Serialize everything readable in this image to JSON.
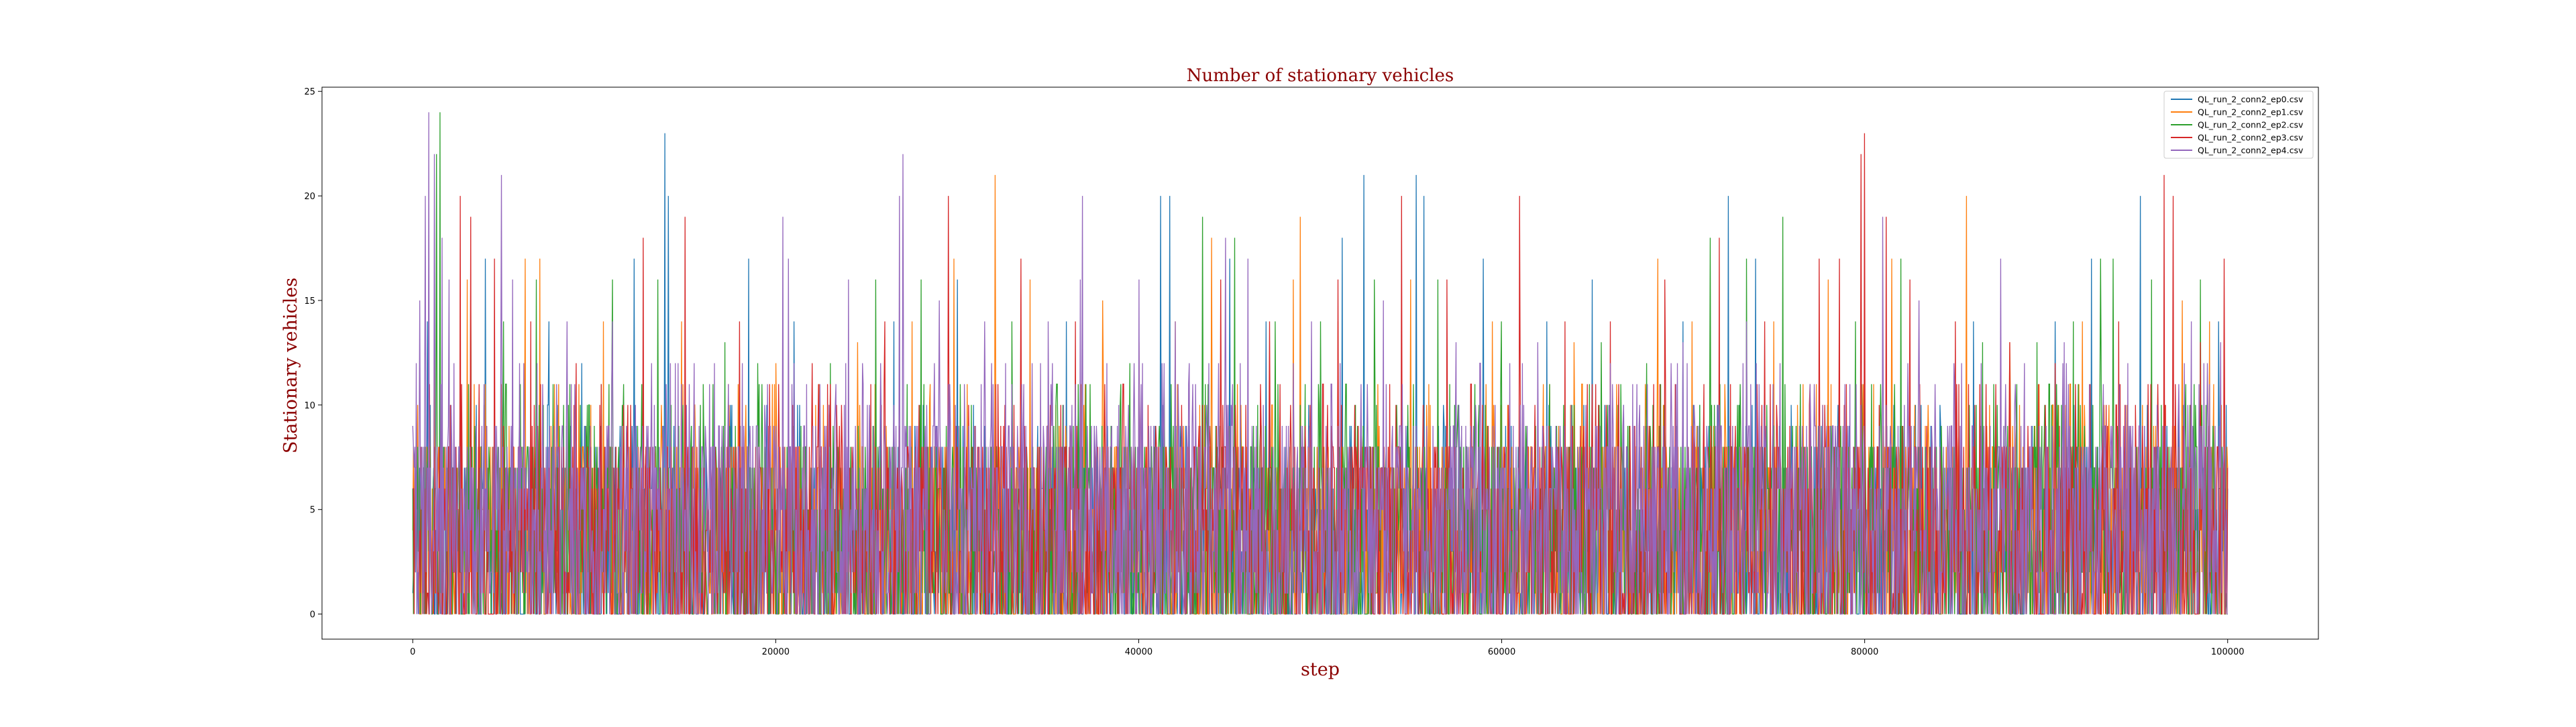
{
  "chart_data": {
    "type": "line",
    "title": "Number of stationary vehicles",
    "xlabel": "step",
    "ylabel": "Stationary vehicles",
    "xlim": [
      -5000,
      105000
    ],
    "ylim": [
      -1.2,
      25.2
    ],
    "x_ticks": [
      0,
      20000,
      40000,
      60000,
      80000,
      100000
    ],
    "x_tick_labels": [
      "0",
      "20000",
      "40000",
      "60000",
      "80000",
      "100000"
    ],
    "y_ticks": [
      0,
      5,
      10,
      15,
      20,
      25
    ],
    "y_tick_labels": [
      "0",
      "5",
      "10",
      "15",
      "20",
      "25"
    ],
    "grid": false,
    "legend_position": "top-right",
    "x_range": [
      0,
      100000
    ],
    "series": [
      {
        "name": "QL_run_2_conn2_ep0.csv",
        "color": "#1f77b4",
        "peaks": [
          [
            100,
            6
          ],
          [
            800,
            14
          ],
          [
            1500,
            16
          ],
          [
            2600,
            12
          ],
          [
            4000,
            17
          ],
          [
            7500,
            14
          ],
          [
            9300,
            12
          ],
          [
            12200,
            17
          ],
          [
            13900,
            23
          ],
          [
            14100,
            20
          ],
          [
            18500,
            17
          ],
          [
            21000,
            14
          ],
          [
            26500,
            14
          ],
          [
            30000,
            16
          ],
          [
            36000,
            14
          ],
          [
            41200,
            20
          ],
          [
            41700,
            20
          ],
          [
            45000,
            17
          ],
          [
            47000,
            14
          ],
          [
            51200,
            18
          ],
          [
            52400,
            21
          ],
          [
            55300,
            21
          ],
          [
            55700,
            20
          ],
          [
            59000,
            17
          ],
          [
            62500,
            14
          ],
          [
            65000,
            16
          ],
          [
            70000,
            14
          ],
          [
            72500,
            20
          ],
          [
            74000,
            17
          ],
          [
            80000,
            14
          ],
          [
            86000,
            14
          ],
          [
            90500,
            14
          ],
          [
            92500,
            17
          ],
          [
            95200,
            20
          ],
          [
            99500,
            14
          ]
        ],
        "baseline_max": 7
      },
      {
        "name": "QL_run_2_conn2_ep1.csv",
        "color": "#ff7f0e",
        "peaks": [
          [
            100,
            6
          ],
          [
            1200,
            14
          ],
          [
            3000,
            16
          ],
          [
            6200,
            17
          ],
          [
            7000,
            17
          ],
          [
            10500,
            14
          ],
          [
            14800,
            14
          ],
          [
            20000,
            12
          ],
          [
            24500,
            13
          ],
          [
            27500,
            14
          ],
          [
            29800,
            17
          ],
          [
            32100,
            21
          ],
          [
            34000,
            16
          ],
          [
            38000,
            15
          ],
          [
            42000,
            14
          ],
          [
            44000,
            18
          ],
          [
            48500,
            16
          ],
          [
            48900,
            19
          ],
          [
            51000,
            14
          ],
          [
            55000,
            16
          ],
          [
            59500,
            14
          ],
          [
            64000,
            13
          ],
          [
            68600,
            17
          ],
          [
            70500,
            14
          ],
          [
            75000,
            14
          ],
          [
            78000,
            16
          ],
          [
            81500,
            17
          ],
          [
            85600,
            20
          ],
          [
            88000,
            13
          ],
          [
            92000,
            14
          ],
          [
            97500,
            15
          ],
          [
            99000,
            14
          ]
        ],
        "baseline_max": 8
      },
      {
        "name": "QL_run_2_conn2_ep2.csv",
        "color": "#2ca02c",
        "peaks": [
          [
            100,
            6
          ],
          [
            1500,
            24
          ],
          [
            1300,
            22
          ],
          [
            3200,
            16
          ],
          [
            5000,
            14
          ],
          [
            6800,
            16
          ],
          [
            11000,
            16
          ],
          [
            13500,
            16
          ],
          [
            16000,
            11
          ],
          [
            17200,
            13
          ],
          [
            19000,
            12
          ],
          [
            23000,
            12
          ],
          [
            25500,
            16
          ],
          [
            28000,
            16
          ],
          [
            33000,
            14
          ],
          [
            39500,
            12
          ],
          [
            43500,
            19
          ],
          [
            45300,
            18
          ],
          [
            47500,
            14
          ],
          [
            50000,
            14
          ],
          [
            53000,
            16
          ],
          [
            56500,
            16
          ],
          [
            60000,
            14
          ],
          [
            65500,
            13
          ],
          [
            68000,
            12
          ],
          [
            71500,
            18
          ],
          [
            73500,
            17
          ],
          [
            75500,
            19
          ],
          [
            79500,
            14
          ],
          [
            82000,
            17
          ],
          [
            86500,
            13
          ],
          [
            89500,
            13
          ],
          [
            91500,
            14
          ],
          [
            93000,
            17
          ],
          [
            93700,
            17
          ],
          [
            95800,
            16
          ],
          [
            98500,
            16
          ]
        ],
        "baseline_max": 8
      },
      {
        "name": "QL_run_2_conn2_ep3.csv",
        "color": "#d62728",
        "peaks": [
          [
            100,
            7
          ],
          [
            2600,
            20
          ],
          [
            3200,
            19
          ],
          [
            4500,
            17
          ],
          [
            6500,
            14
          ],
          [
            9000,
            12
          ],
          [
            12700,
            18
          ],
          [
            15000,
            19
          ],
          [
            18000,
            14
          ],
          [
            22000,
            12
          ],
          [
            26000,
            14
          ],
          [
            29500,
            20
          ],
          [
            33500,
            17
          ],
          [
            36500,
            14
          ],
          [
            40000,
            13
          ],
          [
            44500,
            16
          ],
          [
            47200,
            14
          ],
          [
            51000,
            16
          ],
          [
            54500,
            20
          ],
          [
            57000,
            16
          ],
          [
            61000,
            20
          ],
          [
            63500,
            14
          ],
          [
            66000,
            14
          ],
          [
            69000,
            16
          ],
          [
            72000,
            18
          ],
          [
            74500,
            14
          ],
          [
            77500,
            17
          ],
          [
            78600,
            17
          ],
          [
            79800,
            22
          ],
          [
            80000,
            23
          ],
          [
            81200,
            19
          ],
          [
            82500,
            16
          ],
          [
            85000,
            14
          ],
          [
            88000,
            13
          ],
          [
            90500,
            12
          ],
          [
            94000,
            14
          ],
          [
            96500,
            21
          ],
          [
            97000,
            20
          ],
          [
            98500,
            13
          ],
          [
            99800,
            17
          ]
        ],
        "baseline_max": 8
      },
      {
        "name": "QL_run_2_conn2_ep4.csv",
        "color": "#9467bd",
        "peaks": [
          [
            100,
            8
          ],
          [
            400,
            15
          ],
          [
            700,
            20
          ],
          [
            900,
            24
          ],
          [
            1200,
            22
          ],
          [
            1600,
            18
          ],
          [
            2000,
            16
          ],
          [
            4900,
            21
          ],
          [
            5500,
            16
          ],
          [
            8500,
            14
          ],
          [
            11000,
            14
          ],
          [
            14200,
            12
          ],
          [
            20400,
            19
          ],
          [
            20700,
            17
          ],
          [
            24000,
            16
          ],
          [
            27000,
            22
          ],
          [
            26800,
            20
          ],
          [
            29000,
            15
          ],
          [
            31500,
            14
          ],
          [
            35000,
            14
          ],
          [
            36800,
            16
          ],
          [
            36900,
            20
          ],
          [
            40000,
            16
          ],
          [
            42000,
            14
          ],
          [
            44800,
            18
          ],
          [
            46000,
            17
          ],
          [
            49500,
            14
          ],
          [
            53500,
            15
          ],
          [
            57500,
            13
          ],
          [
            62000,
            13
          ],
          [
            66000,
            12
          ],
          [
            70000,
            13
          ],
          [
            73500,
            14
          ],
          [
            77000,
            11
          ],
          [
            81000,
            19
          ],
          [
            83000,
            15
          ],
          [
            87500,
            17
          ],
          [
            91000,
            13
          ],
          [
            94500,
            12
          ],
          [
            98000,
            14
          ],
          [
            99600,
            13
          ]
        ],
        "baseline_max": 9
      }
    ]
  }
}
